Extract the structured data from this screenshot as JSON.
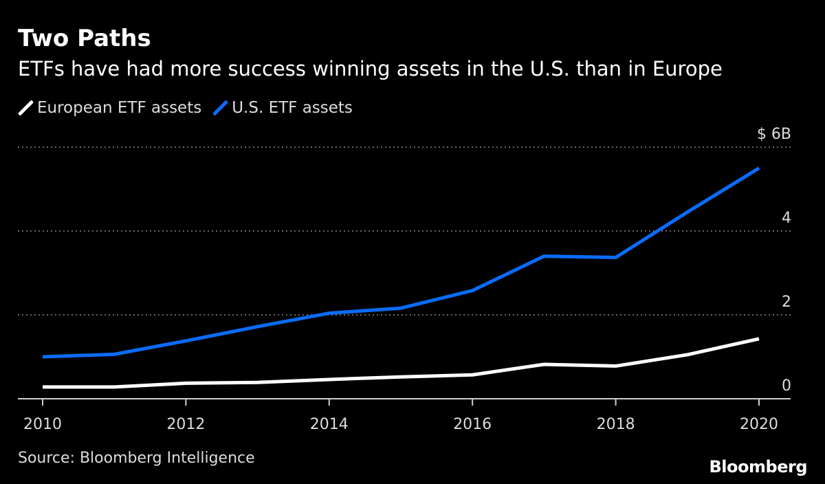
{
  "header": {
    "title": "Two Paths",
    "subtitle": "ETFs have had more success winning assets in the U.S. than in Europe"
  },
  "legend": {
    "items": [
      {
        "label": "European ETF assets",
        "color": "#ffffff"
      },
      {
        "label": "U.S. ETF assets",
        "color": "#0a6cff"
      }
    ]
  },
  "footer": {
    "source": "Source: Bloomberg Intelligence",
    "brand": "Bloomberg"
  },
  "chart_data": {
    "type": "line",
    "x": [
      2010,
      2011,
      2012,
      2013,
      2014,
      2015,
      2016,
      2017,
      2018,
      2019,
      2020
    ],
    "series": [
      {
        "name": "European ETF assets",
        "color": "#ffffff",
        "values": [
          0.28,
          0.28,
          0.37,
          0.39,
          0.46,
          0.52,
          0.57,
          0.82,
          0.78,
          1.05,
          1.43
        ]
      },
      {
        "name": "U.S. ETF assets",
        "color": "#0a6cff",
        "values": [
          1.0,
          1.06,
          1.38,
          1.72,
          2.04,
          2.16,
          2.58,
          3.4,
          3.37,
          4.45,
          5.5
        ]
      }
    ],
    "xticks": [
      "2010",
      "2012",
      "2014",
      "2016",
      "2018",
      "2020"
    ],
    "yticks": [
      {
        "value": 0,
        "label": "0"
      },
      {
        "value": 2,
        "label": "2"
      },
      {
        "value": 4,
        "label": "4"
      },
      {
        "value": 6,
        "label": "$ 6B"
      }
    ],
    "ylim": [
      0,
      6
    ],
    "xlim": [
      2010,
      2020
    ],
    "grid": "horizontal-dotted",
    "legend_position": "top-left"
  }
}
